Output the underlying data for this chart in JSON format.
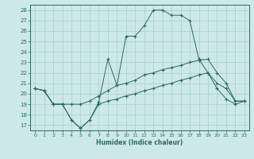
{
  "xlabel": "Humidex (Indice chaleur)",
  "bg_color": "#cce8e8",
  "line_color": "#2a6b60",
  "grid_color": "#aacccc",
  "xlim": [
    -0.5,
    23.5
  ],
  "ylim": [
    16.5,
    28.5
  ],
  "yticks": [
    17,
    18,
    19,
    20,
    21,
    22,
    23,
    24,
    25,
    26,
    27,
    28
  ],
  "xticks": [
    0,
    1,
    2,
    3,
    4,
    5,
    6,
    7,
    8,
    9,
    10,
    11,
    12,
    13,
    14,
    15,
    16,
    17,
    18,
    19,
    20,
    21,
    22,
    23
  ],
  "line1_x": [
    0,
    1,
    2,
    3,
    4,
    5,
    6,
    7,
    8,
    9,
    10,
    11,
    12,
    13,
    14,
    15,
    16,
    17,
    18,
    19,
    20,
    21,
    22,
    23
  ],
  "line1_y": [
    20.5,
    20.3,
    19.0,
    19.0,
    17.5,
    16.7,
    17.5,
    19.2,
    23.3,
    20.8,
    25.5,
    25.5,
    26.5,
    28.0,
    28.0,
    27.5,
    27.5,
    27.0,
    23.3,
    22.0,
    21.0,
    20.5,
    19.3,
    19.3
  ],
  "line2_x": [
    0,
    1,
    2,
    3,
    4,
    5,
    6,
    7,
    8,
    9,
    10,
    11,
    12,
    13,
    14,
    15,
    16,
    17,
    18,
    19,
    20,
    21,
    22,
    23
  ],
  "line2_y": [
    20.5,
    20.3,
    19.0,
    19.0,
    19.0,
    19.0,
    19.3,
    19.8,
    20.3,
    20.8,
    21.0,
    21.3,
    21.8,
    22.0,
    22.3,
    22.5,
    22.7,
    23.0,
    23.2,
    23.3,
    22.0,
    21.0,
    19.3,
    19.3
  ],
  "line3_x": [
    0,
    1,
    2,
    3,
    4,
    5,
    6,
    7,
    8,
    9,
    10,
    11,
    12,
    13,
    14,
    15,
    16,
    17,
    18,
    19,
    20,
    21,
    22,
    23
  ],
  "line3_y": [
    20.5,
    20.3,
    19.0,
    19.0,
    17.5,
    16.7,
    17.5,
    19.0,
    19.3,
    19.5,
    19.8,
    20.0,
    20.3,
    20.5,
    20.8,
    21.0,
    21.3,
    21.5,
    21.8,
    22.0,
    20.5,
    19.5,
    19.0,
    19.3
  ],
  "figw": 3.2,
  "figh": 2.0,
  "dpi": 100
}
